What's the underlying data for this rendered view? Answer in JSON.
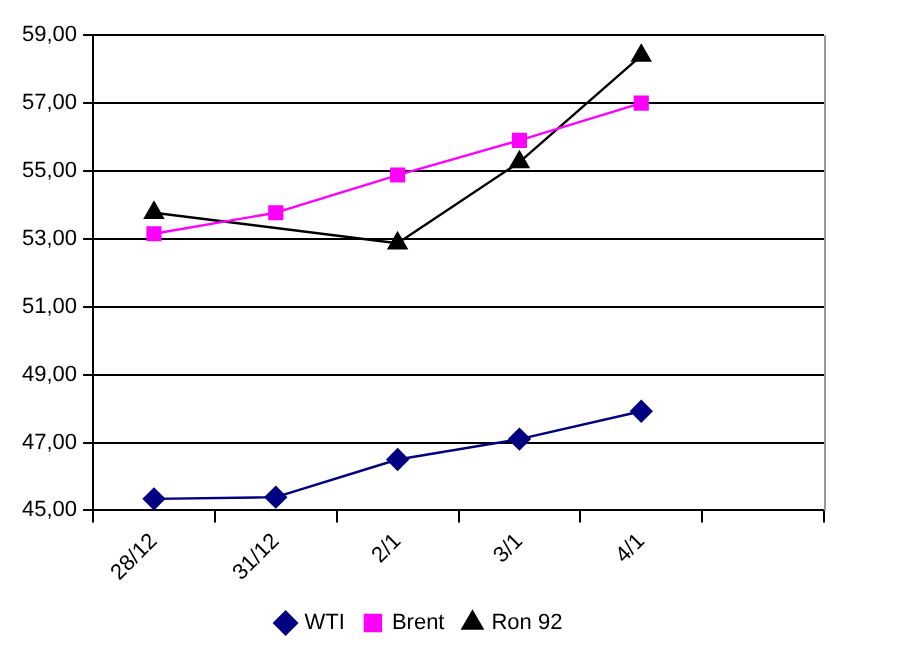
{
  "chart_data": {
    "type": "line",
    "categories": [
      "28/12",
      "31/12",
      "2/1",
      "3/1",
      "4/1",
      null
    ],
    "series": [
      {
        "name": "WTI",
        "color": "#000080",
        "marker": "diamond",
        "values": [
          45.34,
          45.39,
          46.5,
          47.1,
          47.92,
          null
        ]
      },
      {
        "name": "Brent",
        "color": "#ff00ff",
        "marker": "square",
        "values": [
          53.15,
          53.77,
          54.88,
          55.9,
          57.0,
          null
        ]
      },
      {
        "name": "Ron 92",
        "color": "#000000",
        "marker": "triangle",
        "values": [
          53.77,
          null,
          52.87,
          55.26,
          58.4,
          null
        ]
      }
    ],
    "ylim": [
      45,
      59
    ],
    "yticks": [
      {
        "value": 45,
        "label": "45,00"
      },
      {
        "value": 47,
        "label": "47,00"
      },
      {
        "value": 49,
        "label": "49,00"
      },
      {
        "value": 51,
        "label": "51,00"
      },
      {
        "value": 53,
        "label": "53,00"
      },
      {
        "value": 55,
        "label": "55,00"
      },
      {
        "value": 57,
        "label": "57,00"
      },
      {
        "value": 59,
        "label": "59,00"
      }
    ],
    "grid": "y",
    "legend": "bottom"
  }
}
